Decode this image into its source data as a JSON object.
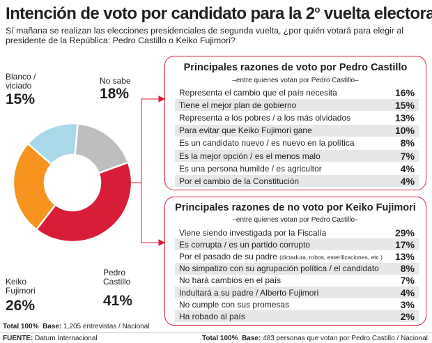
{
  "title_main": "Intención de voto por candidato para la 2",
  "title_sup": "o",
  "title_end": " vuelta electoral",
  "subtitle": "Sí mañana se realizan las elecciones presidenciales de segunda vuelta, ¿por quién votará para elegir al presidente de la República: Pedro Castillo o Keiko Fujimori?",
  "chart_data": [
    {
      "type": "pie",
      "categories": [
        "Pedro Castillo",
        "Keiko Fujimori",
        "Blanco / viciado",
        "No sabe"
      ],
      "values": [
        41,
        26,
        15,
        18
      ],
      "value_labels": [
        "41%",
        "26%",
        "15%",
        "18%"
      ],
      "colors": [
        "#d81e37",
        "#f7941d",
        "#a8d8ea",
        "#bcbec0"
      ]
    },
    {
      "type": "table",
      "title": "Principales razones de voto por Pedro Castillo",
      "subtitle": "–entre quienes votan por Pedro Castillo–",
      "categories": [
        "Representa el cambio que el país necesita",
        "Tiene el mejor plan de gobierno",
        "Representa a los pobres / a los más olvidados",
        "Para evitar que Keiko Fujimori gane",
        "Es un candidato nuevo / es nuevo en la política",
        "Es la mejor opción / es el menos  malo",
        "Es una persona humilde / es agricultor",
        "Por el cambio de la Constitución"
      ],
      "values": [
        16,
        15,
        13,
        10,
        8,
        7,
        4,
        4
      ],
      "value_labels": [
        "16%",
        "15%",
        "13%",
        "10%",
        "8%",
        "7%",
        "4%",
        "4%"
      ]
    },
    {
      "type": "table",
      "title": "Principales razones de no voto por Keiko Fujimori",
      "subtitle": "–entre quienes votan por Pedro Castillo–",
      "categories": [
        "Viene siendo investigada por la Fiscalía",
        "Es corrupta / es un partido corrupto",
        "Por el pasado de su padre",
        "No simpatizo con su agrupación política / el candidato",
        "No hará cambios en el país",
        "Indultará a su padre / Alberto Fujimori",
        "No cumple con sus promesas",
        "Ha robado al país"
      ],
      "category_notes": [
        "",
        "",
        "(dictadura, robos, esterilizaciones, etc.)",
        "",
        "",
        "",
        "",
        ""
      ],
      "values": [
        29,
        17,
        13,
        8,
        7,
        4,
        3,
        2
      ],
      "value_labels": [
        "29%",
        "17%",
        "13%",
        "8%",
        "7%",
        "4%",
        "3%",
        "2%"
      ]
    }
  ],
  "footer": {
    "left_total": "Total 100%",
    "left_base_label": "Base:",
    "left_base_text": "1,205 entrevistas / Nacional",
    "source_label": "FUENTE:",
    "source_text": "Datum Internacional",
    "right_total": "Total 100%",
    "right_base_label": "Base:",
    "right_base_text": "483 personas que votan por Pedro Castillo / Nacional"
  }
}
